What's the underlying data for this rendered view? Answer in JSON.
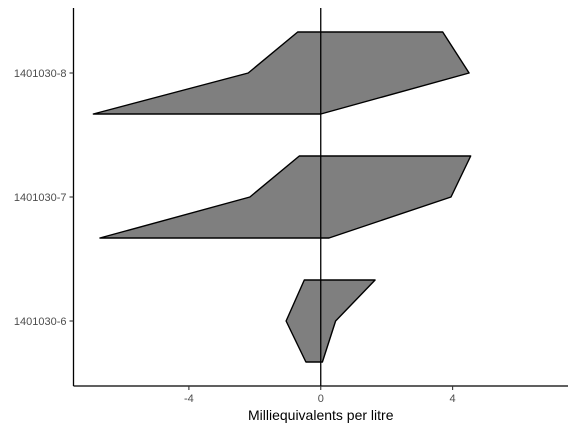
{
  "chart_data": {
    "type": "stiff-diagram",
    "title": "",
    "xlabel": "Milliequivalents per litre",
    "ylabel": "",
    "xlim": [
      -7.5,
      7.5
    ],
    "x_ticks": [
      -4,
      0,
      4
    ],
    "x_tick_labels": [
      "-4",
      "0",
      "4"
    ],
    "grid": false,
    "legend": "none",
    "fill_color": "#7f7f7f",
    "stroke_color": "#000000",
    "categories": [
      "1401030-8",
      "1401030-7",
      "1401030-6"
    ],
    "series": [
      {
        "name": "1401030-8",
        "left": [
          -0.7,
          -2.2,
          -6.9
        ],
        "right": [
          3.7,
          4.5,
          0.0
        ]
      },
      {
        "name": "1401030-7",
        "left": [
          -0.65,
          -2.15,
          -6.7
        ],
        "right": [
          4.55,
          3.95,
          0.25
        ]
      },
      {
        "name": "1401030-6",
        "left": [
          -0.5,
          -1.05,
          -0.45
        ],
        "right": [
          1.65,
          0.45,
          0.05
        ]
      }
    ]
  }
}
